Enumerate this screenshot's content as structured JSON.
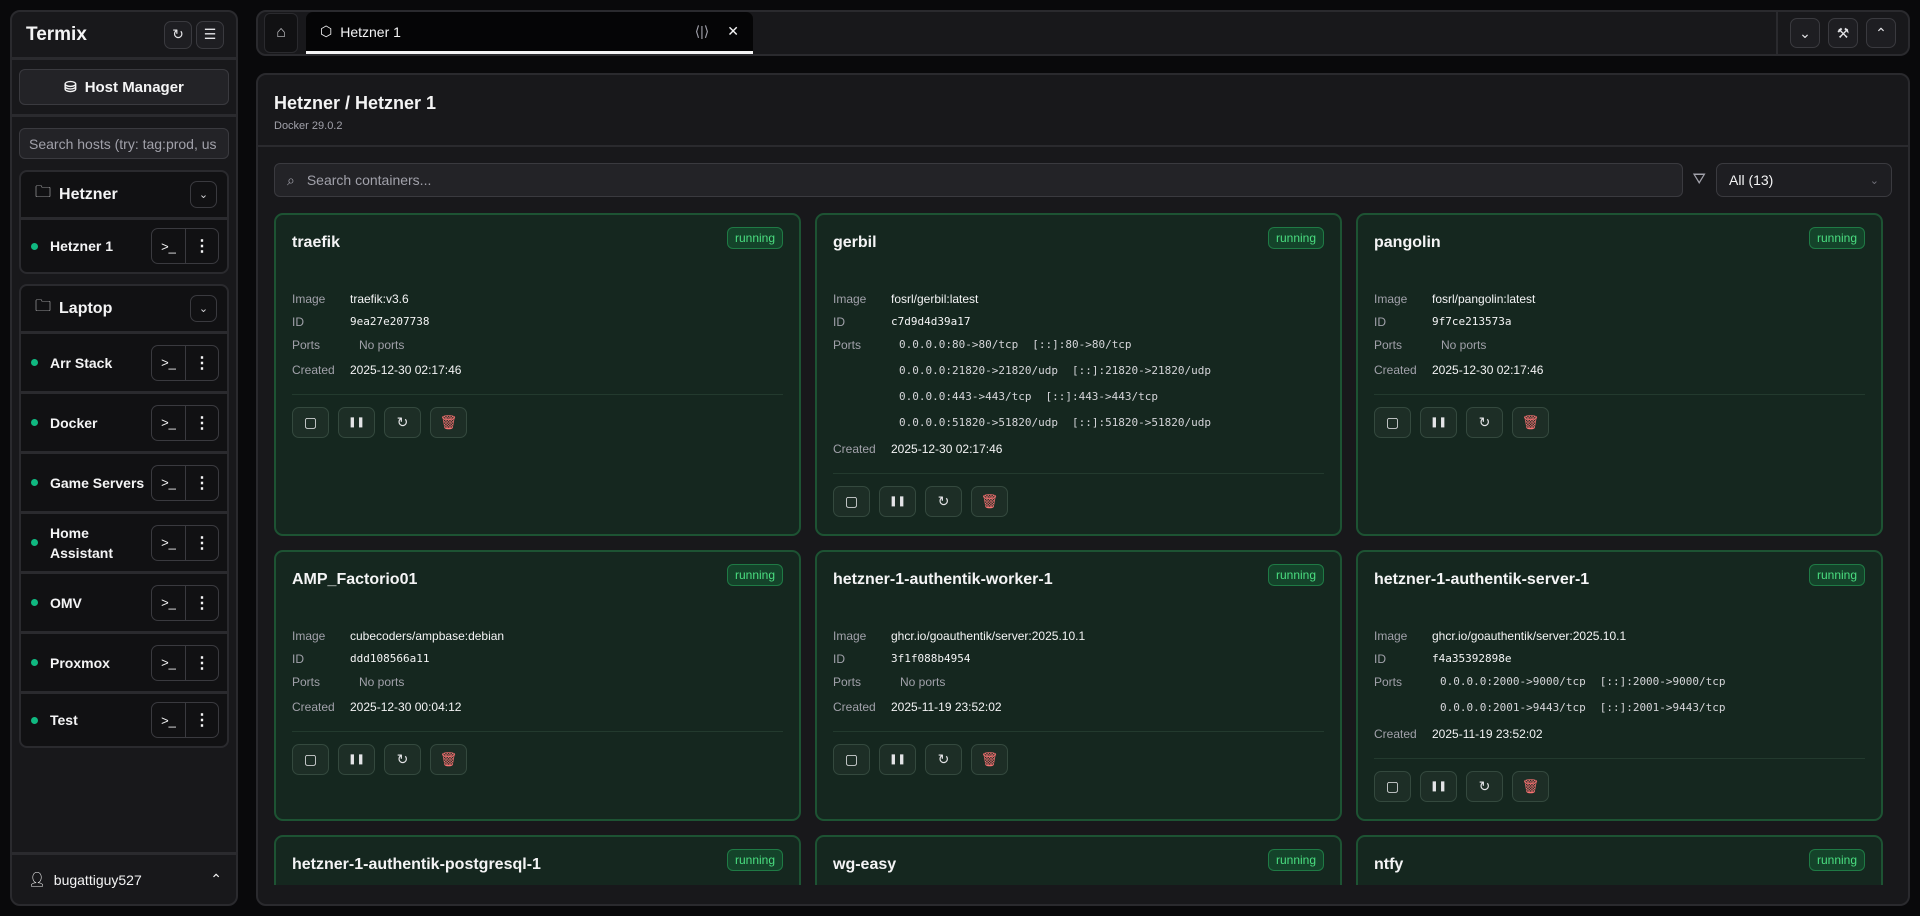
{
  "sidebar": {
    "title": "Termix",
    "host_manager": "Host Manager",
    "search_placeholder": "Search hosts (try: tag:prod, us",
    "groups": [
      {
        "name": "Hetzner",
        "hosts": [
          "Hetzner 1"
        ]
      },
      {
        "name": "Laptop",
        "hosts": [
          "Arr Stack",
          "Docker",
          "Game Servers",
          "Home Assistant",
          "OMV",
          "Proxmox",
          "Test"
        ]
      }
    ],
    "user": "bugattiguy527"
  },
  "tabs": {
    "active": "Hetzner 1"
  },
  "main": {
    "title": "Hetzner / Hetzner 1",
    "subtitle": "Docker 29.0.2",
    "search_placeholder": "Search containers...",
    "filter": "All (13)",
    "labels": {
      "image": "Image",
      "id": "ID",
      "ports": "Ports",
      "created": "Created",
      "no_ports": "No ports"
    },
    "containers": [
      {
        "name": "traefik",
        "status": "running",
        "image": "traefik:v3.6",
        "id": "9ea27e207738",
        "ports": [],
        "created": "2025-12-30 02:17:46"
      },
      {
        "name": "gerbil",
        "status": "running",
        "image": "fosrl/gerbil:latest",
        "id": "c7d9d4d39a17",
        "ports": [
          [
            "0.0.0.0:80->80/tcp",
            "[::]:80->80/tcp"
          ],
          [
            "0.0.0.0:21820->21820/udp",
            "[::]:21820->21820/udp"
          ],
          [
            "0.0.0.0:443->443/tcp",
            "[::]:443->443/tcp"
          ],
          [
            "0.0.0.0:51820->51820/udp",
            "[::]:51820->51820/udp"
          ]
        ],
        "created": "2025-12-30 02:17:46"
      },
      {
        "name": "pangolin",
        "status": "running",
        "image": "fosrl/pangolin:latest",
        "id": "9f7ce213573a",
        "ports": [],
        "created": "2025-12-30 02:17:46"
      },
      {
        "name": "AMP_Factorio01",
        "status": "running",
        "image": "cubecoders/ampbase:debian",
        "id": "ddd108566a11",
        "ports": [],
        "created": "2025-12-30 00:04:12"
      },
      {
        "name": "hetzner-1-authentik-worker-1",
        "status": "running",
        "image": "ghcr.io/goauthentik/server:2025.10.1",
        "id": "3f1f088b4954",
        "ports": [],
        "created": "2025-11-19 23:52:02"
      },
      {
        "name": "hetzner-1-authentik-server-1",
        "status": "running",
        "image": "ghcr.io/goauthentik/server:2025.10.1",
        "id": "f4a35392898e",
        "ports": [
          [
            "0.0.0.0:2000->9000/tcp",
            "[::]:2000->9000/tcp"
          ],
          [
            "0.0.0.0:2001->9443/tcp",
            "[::]:2001->9443/tcp"
          ]
        ],
        "created": "2025-11-19 23:52:02"
      },
      {
        "name": "hetzner-1-authentik-postgresql-1",
        "status": "running"
      },
      {
        "name": "wg-easy",
        "status": "running"
      },
      {
        "name": "ntfy",
        "status": "running"
      }
    ]
  },
  "colors": {
    "running": "#4ade80",
    "status_dot": "#10b981",
    "card_border": "#1d5333",
    "delete": "#f87171"
  }
}
